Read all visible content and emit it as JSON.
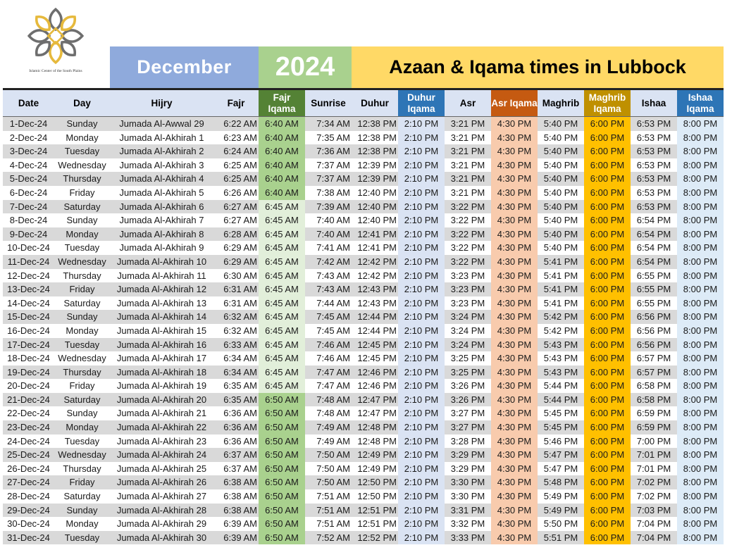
{
  "logo": {
    "name": "logo-icon",
    "caption": "Islamic Center of the South Plains",
    "colors": {
      "gold": "#e6b93c",
      "gray": "#6e6e6e"
    }
  },
  "banner": {
    "month": "December",
    "year": "2024",
    "title": "Azaan & Iqama times in Lubbock"
  },
  "headers": [
    {
      "key": "date",
      "label": "Date"
    },
    {
      "key": "day",
      "label": "Day"
    },
    {
      "key": "hijry",
      "label": "Hijry"
    },
    {
      "key": "fajr",
      "label": "Fajr"
    },
    {
      "key": "fajr_iqama",
      "label": "Fajr Iqama"
    },
    {
      "key": "sunrise",
      "label": "Sunrise"
    },
    {
      "key": "duhur",
      "label": "Duhur"
    },
    {
      "key": "duhur_iqama",
      "label": "Duhur Iqama"
    },
    {
      "key": "asr",
      "label": "Asr"
    },
    {
      "key": "asr_iqama",
      "label": "Asr Iqama"
    },
    {
      "key": "maghrib",
      "label": "Maghrib"
    },
    {
      "key": "maghrib_iqama",
      "label": "Maghrib Iqama"
    },
    {
      "key": "ishaa",
      "label": "Ishaa"
    },
    {
      "key": "ishaa_iqama",
      "label": "Ishaa Iqama"
    }
  ],
  "rows": [
    [
      "1-Dec-24",
      "Sunday",
      "Jumada Al-Awwal 29",
      "6:22 AM",
      "6:40 AM",
      "7:34 AM",
      "12:38 PM",
      "2:10 PM",
      "3:21 PM",
      "4:30 PM",
      "5:40 PM",
      "6:00 PM",
      "6:53 PM",
      "8:00 PM"
    ],
    [
      "2-Dec-24",
      "Monday",
      "Jumada Al-Akhirah 1",
      "6:23 AM",
      "6:40 AM",
      "7:35 AM",
      "12:38 PM",
      "2:10 PM",
      "3:21 PM",
      "4:30 PM",
      "5:40 PM",
      "6:00 PM",
      "6:53 PM",
      "8:00 PM"
    ],
    [
      "3-Dec-24",
      "Tuesday",
      "Jumada Al-Akhirah 2",
      "6:24 AM",
      "6:40 AM",
      "7:36 AM",
      "12:38 PM",
      "2:10 PM",
      "3:21 PM",
      "4:30 PM",
      "5:40 PM",
      "6:00 PM",
      "6:53 PM",
      "8:00 PM"
    ],
    [
      "4-Dec-24",
      "Wednesday",
      "Jumada Al-Akhirah 3",
      "6:25 AM",
      "6:40 AM",
      "7:37 AM",
      "12:39 PM",
      "2:10 PM",
      "3:21 PM",
      "4:30 PM",
      "5:40 PM",
      "6:00 PM",
      "6:53 PM",
      "8:00 PM"
    ],
    [
      "5-Dec-24",
      "Thursday",
      "Jumada Al-Akhirah 4",
      "6:25 AM",
      "6:40 AM",
      "7:37 AM",
      "12:39 PM",
      "2:10 PM",
      "3:21 PM",
      "4:30 PM",
      "5:40 PM",
      "6:00 PM",
      "6:53 PM",
      "8:00 PM"
    ],
    [
      "6-Dec-24",
      "Friday",
      "Jumada Al-Akhirah 5",
      "6:26 AM",
      "6:40 AM",
      "7:38 AM",
      "12:40 PM",
      "2:10 PM",
      "3:21 PM",
      "4:30 PM",
      "5:40 PM",
      "6:00 PM",
      "6:53 PM",
      "8:00 PM"
    ],
    [
      "7-Dec-24",
      "Saturday",
      "Jumada Al-Akhirah 6",
      "6:27 AM",
      "6:45 AM",
      "7:39 AM",
      "12:40 PM",
      "2:10 PM",
      "3:22 PM",
      "4:30 PM",
      "5:40 PM",
      "6:00 PM",
      "6:53 PM",
      "8:00 PM"
    ],
    [
      "8-Dec-24",
      "Sunday",
      "Jumada Al-Akhirah 7",
      "6:27 AM",
      "6:45 AM",
      "7:40 AM",
      "12:40 PM",
      "2:10 PM",
      "3:22 PM",
      "4:30 PM",
      "5:40 PM",
      "6:00 PM",
      "6:54 PM",
      "8:00 PM"
    ],
    [
      "9-Dec-24",
      "Monday",
      "Jumada Al-Akhirah 8",
      "6:28 AM",
      "6:45 AM",
      "7:40 AM",
      "12:41 PM",
      "2:10 PM",
      "3:22 PM",
      "4:30 PM",
      "5:40 PM",
      "6:00 PM",
      "6:54 PM",
      "8:00 PM"
    ],
    [
      "10-Dec-24",
      "Tuesday",
      "Jumada Al-Akhirah 9",
      "6:29 AM",
      "6:45 AM",
      "7:41 AM",
      "12:41 PM",
      "2:10 PM",
      "3:22 PM",
      "4:30 PM",
      "5:40 PM",
      "6:00 PM",
      "6:54 PM",
      "8:00 PM"
    ],
    [
      "11-Dec-24",
      "Wednesday",
      "Jumada Al-Akhirah 10",
      "6:29 AM",
      "6:45 AM",
      "7:42 AM",
      "12:42 PM",
      "2:10 PM",
      "3:22 PM",
      "4:30 PM",
      "5:41 PM",
      "6:00 PM",
      "6:54 PM",
      "8:00 PM"
    ],
    [
      "12-Dec-24",
      "Thursday",
      "Jumada Al-Akhirah 11",
      "6:30 AM",
      "6:45 AM",
      "7:43 AM",
      "12:42 PM",
      "2:10 PM",
      "3:23 PM",
      "4:30 PM",
      "5:41 PM",
      "6:00 PM",
      "6:55 PM",
      "8:00 PM"
    ],
    [
      "13-Dec-24",
      "Friday",
      "Jumada Al-Akhirah 12",
      "6:31 AM",
      "6:45 AM",
      "7:43 AM",
      "12:43 PM",
      "2:10 PM",
      "3:23 PM",
      "4:30 PM",
      "5:41 PM",
      "6:00 PM",
      "6:55 PM",
      "8:00 PM"
    ],
    [
      "14-Dec-24",
      "Saturday",
      "Jumada Al-Akhirah 13",
      "6:31 AM",
      "6:45 AM",
      "7:44 AM",
      "12:43 PM",
      "2:10 PM",
      "3:23 PM",
      "4:30 PM",
      "5:41 PM",
      "6:00 PM",
      "6:55 PM",
      "8:00 PM"
    ],
    [
      "15-Dec-24",
      "Sunday",
      "Jumada Al-Akhirah 14",
      "6:32 AM",
      "6:45 AM",
      "7:45 AM",
      "12:44 PM",
      "2:10 PM",
      "3:24 PM",
      "4:30 PM",
      "5:42 PM",
      "6:00 PM",
      "6:56 PM",
      "8:00 PM"
    ],
    [
      "16-Dec-24",
      "Monday",
      "Jumada Al-Akhirah 15",
      "6:32 AM",
      "6:45 AM",
      "7:45 AM",
      "12:44 PM",
      "2:10 PM",
      "3:24 PM",
      "4:30 PM",
      "5:42 PM",
      "6:00 PM",
      "6:56 PM",
      "8:00 PM"
    ],
    [
      "17-Dec-24",
      "Tuesday",
      "Jumada Al-Akhirah 16",
      "6:33 AM",
      "6:45 AM",
      "7:46 AM",
      "12:45 PM",
      "2:10 PM",
      "3:24 PM",
      "4:30 PM",
      "5:43 PM",
      "6:00 PM",
      "6:56 PM",
      "8:00 PM"
    ],
    [
      "18-Dec-24",
      "Wednesday",
      "Jumada Al-Akhirah 17",
      "6:34 AM",
      "6:45 AM",
      "7:46 AM",
      "12:45 PM",
      "2:10 PM",
      "3:25 PM",
      "4:30 PM",
      "5:43 PM",
      "6:00 PM",
      "6:57 PM",
      "8:00 PM"
    ],
    [
      "19-Dec-24",
      "Thursday",
      "Jumada Al-Akhirah 18",
      "6:34 AM",
      "6:45 AM",
      "7:47 AM",
      "12:46 PM",
      "2:10 PM",
      "3:25 PM",
      "4:30 PM",
      "5:43 PM",
      "6:00 PM",
      "6:57 PM",
      "8:00 PM"
    ],
    [
      "20-Dec-24",
      "Friday",
      "Jumada Al-Akhirah 19",
      "6:35 AM",
      "6:45 AM",
      "7:47 AM",
      "12:46 PM",
      "2:10 PM",
      "3:26 PM",
      "4:30 PM",
      "5:44 PM",
      "6:00 PM",
      "6:58 PM",
      "8:00 PM"
    ],
    [
      "21-Dec-24",
      "Saturday",
      "Jumada Al-Akhirah 20",
      "6:35 AM",
      "6:50 AM",
      "7:48 AM",
      "12:47 PM",
      "2:10 PM",
      "3:26 PM",
      "4:30 PM",
      "5:44 PM",
      "6:00 PM",
      "6:58 PM",
      "8:00 PM"
    ],
    [
      "22-Dec-24",
      "Sunday",
      "Jumada Al-Akhirah 21",
      "6:36 AM",
      "6:50 AM",
      "7:48 AM",
      "12:47 PM",
      "2:10 PM",
      "3:27 PM",
      "4:30 PM",
      "5:45 PM",
      "6:00 PM",
      "6:59 PM",
      "8:00 PM"
    ],
    [
      "23-Dec-24",
      "Monday",
      "Jumada Al-Akhirah 22",
      "6:36 AM",
      "6:50 AM",
      "7:49 AM",
      "12:48 PM",
      "2:10 PM",
      "3:27 PM",
      "4:30 PM",
      "5:45 PM",
      "6:00 PM",
      "6:59 PM",
      "8:00 PM"
    ],
    [
      "24-Dec-24",
      "Tuesday",
      "Jumada Al-Akhirah 23",
      "6:36 AM",
      "6:50 AM",
      "7:49 AM",
      "12:48 PM",
      "2:10 PM",
      "3:28 PM",
      "4:30 PM",
      "5:46 PM",
      "6:00 PM",
      "7:00 PM",
      "8:00 PM"
    ],
    [
      "25-Dec-24",
      "Wednesday",
      "Jumada Al-Akhirah 24",
      "6:37 AM",
      "6:50 AM",
      "7:50 AM",
      "12:49 PM",
      "2:10 PM",
      "3:29 PM",
      "4:30 PM",
      "5:47 PM",
      "6:00 PM",
      "7:01 PM",
      "8:00 PM"
    ],
    [
      "26-Dec-24",
      "Thursday",
      "Jumada Al-Akhirah 25",
      "6:37 AM",
      "6:50 AM",
      "7:50 AM",
      "12:49 PM",
      "2:10 PM",
      "3:29 PM",
      "4:30 PM",
      "5:47 PM",
      "6:00 PM",
      "7:01 PM",
      "8:00 PM"
    ],
    [
      "27-Dec-24",
      "Friday",
      "Jumada Al-Akhirah 26",
      "6:38 AM",
      "6:50 AM",
      "7:50 AM",
      "12:50 PM",
      "2:10 PM",
      "3:30 PM",
      "4:30 PM",
      "5:48 PM",
      "6:00 PM",
      "7:02 PM",
      "8:00 PM"
    ],
    [
      "28-Dec-24",
      "Saturday",
      "Jumada Al-Akhirah 27",
      "6:38 AM",
      "6:50 AM",
      "7:51 AM",
      "12:50 PM",
      "2:10 PM",
      "3:30 PM",
      "4:30 PM",
      "5:49 PM",
      "6:00 PM",
      "7:02 PM",
      "8:00 PM"
    ],
    [
      "29-Dec-24",
      "Sunday",
      "Jumada Al-Akhirah 28",
      "6:38 AM",
      "6:50 AM",
      "7:51 AM",
      "12:51 PM",
      "2:10 PM",
      "3:31 PM",
      "4:30 PM",
      "5:49 PM",
      "6:00 PM",
      "7:03 PM",
      "8:00 PM"
    ],
    [
      "30-Dec-24",
      "Monday",
      "Jumada Al-Akhirah 29",
      "6:39 AM",
      "6:50 AM",
      "7:51 AM",
      "12:51 PM",
      "2:10 PM",
      "3:32 PM",
      "4:30 PM",
      "5:50 PM",
      "6:00 PM",
      "7:04 PM",
      "8:00 PM"
    ],
    [
      "31-Dec-24",
      "Tuesday",
      "Jumada Al-Akhirah 30",
      "6:39 AM",
      "6:50 AM",
      "7:52 AM",
      "12:52 PM",
      "2:10 PM",
      "3:33 PM",
      "4:30 PM",
      "5:51 PM",
      "6:00 PM",
      "7:04 PM",
      "8:00 PM"
    ]
  ],
  "colors": {
    "month_banner": "#8faadc",
    "year_banner": "#a9d18e",
    "title_banner": "#ffd966",
    "fajr_iqama_header": "#548235",
    "duhur_iqama_header": "#2e75b6",
    "asr_iqama_header": "#c55a11",
    "maghrib_iqama_header": "#bf9000",
    "ishaa_iqama_header": "#2e75b6"
  }
}
